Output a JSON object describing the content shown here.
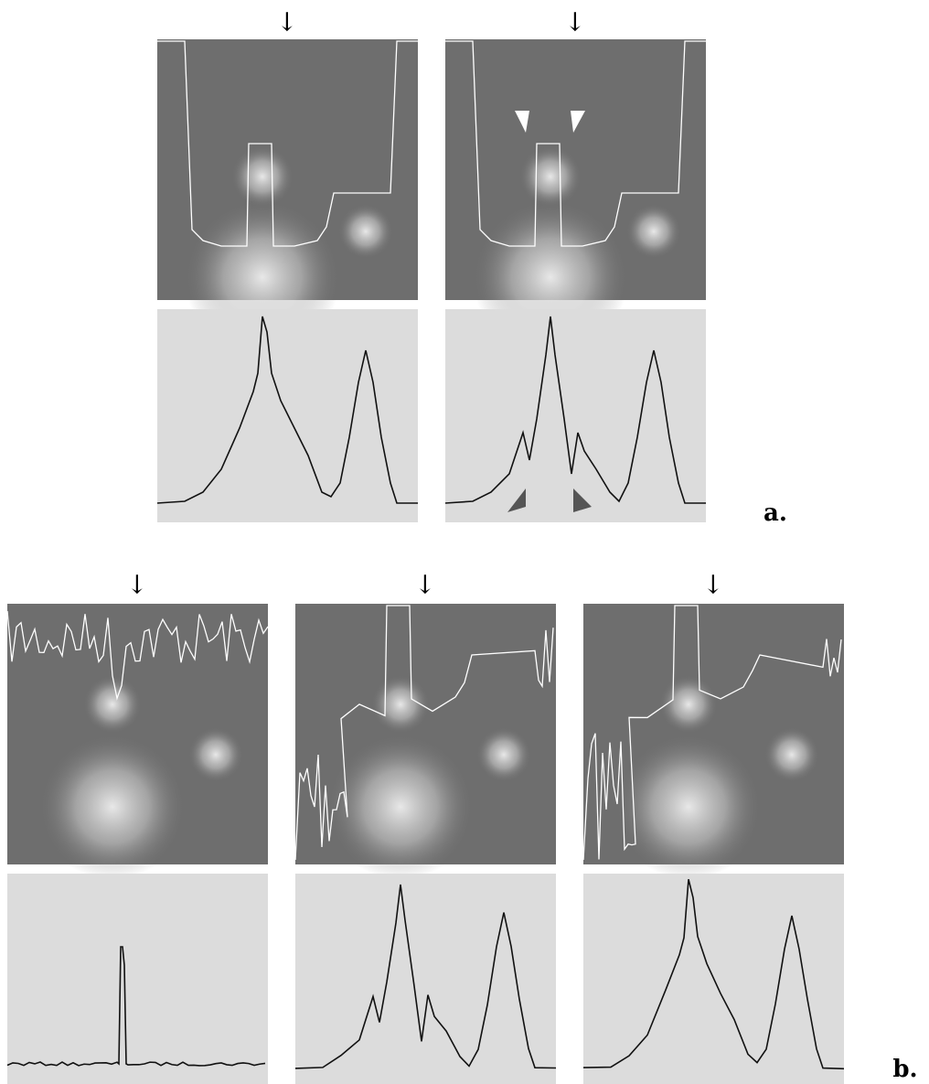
{
  "panel_a": {
    "arrows": [
      "↓",
      "↓"
    ],
    "label": "a."
  },
  "panel_b": {
    "arrows": [
      "↓",
      "↓",
      "↓"
    ],
    "label": "b."
  }
}
